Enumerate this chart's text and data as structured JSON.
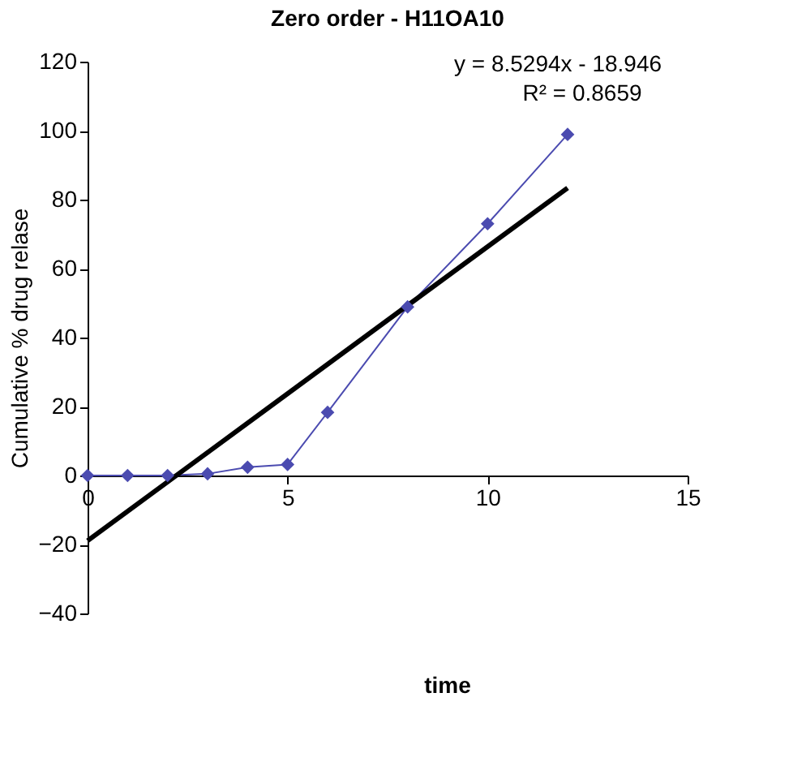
{
  "chart_data": {
    "type": "line",
    "title": "Zero order - H11OA10",
    "xlabel": "time",
    "ylabel": "Cumulative % drug relase",
    "annotations": [
      "y = 8.5294x - 18.946",
      "R² = 0.8659"
    ],
    "series": [
      {
        "color": "#4b4bb0",
        "marker": "diamond",
        "x": [
          0,
          1,
          2,
          3,
          4,
          5,
          6,
          8,
          10,
          12
        ],
        "values": [
          0,
          0,
          0,
          0.5,
          2.4,
          3.2,
          18.3,
          48.9,
          73,
          98.9
        ]
      },
      {
        "color": "#000000",
        "marker": "none",
        "x": [
          0,
          12
        ],
        "values": [
          -18.9,
          83.4
        ]
      }
    ],
    "xlim": [
      0,
      15
    ],
    "xticks": [
      0,
      5,
      10,
      15
    ],
    "ylim": [
      -40,
      120
    ],
    "yticks": [
      -40,
      -20,
      0,
      20,
      40,
      60,
      80,
      100,
      120
    ],
    "grid": false
  }
}
